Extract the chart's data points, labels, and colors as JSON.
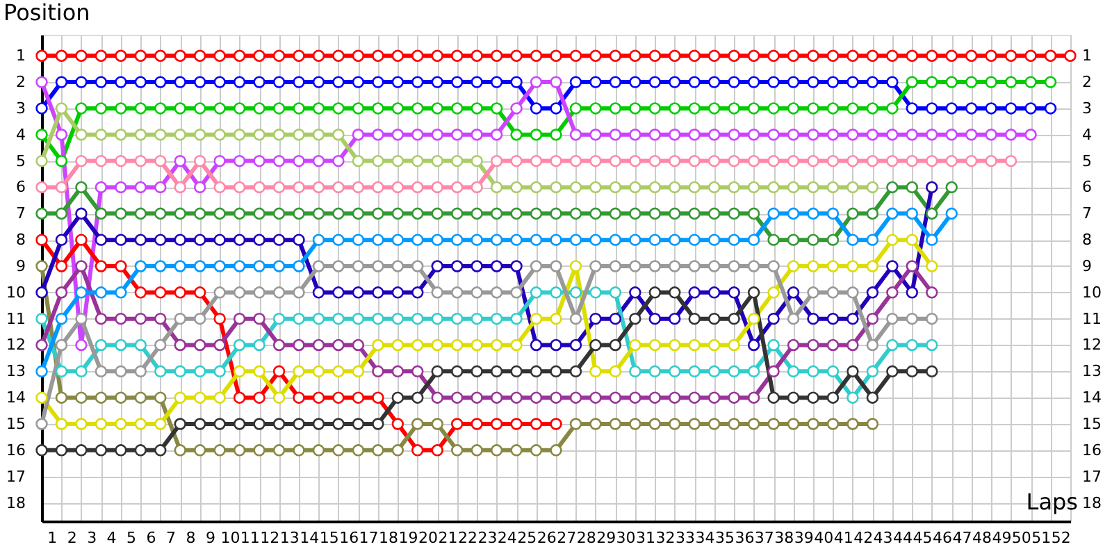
{
  "chart_data": {
    "type": "line",
    "xlabel": "Laps",
    "ylabel": "Position",
    "grid": true,
    "marker": "circle",
    "line_style": "solid",
    "legend": false,
    "x": [
      0,
      1,
      2,
      3,
      4,
      5,
      6,
      7,
      8,
      9,
      10,
      11,
      12,
      13,
      14,
      15,
      16,
      17,
      18,
      19,
      20,
      21,
      22,
      23,
      24,
      25,
      26,
      27,
      28,
      29,
      30,
      31,
      32,
      33,
      34,
      35,
      36,
      37,
      38,
      39,
      40,
      41,
      42,
      43,
      44,
      45,
      46,
      47,
      48,
      49,
      50,
      51,
      52
    ],
    "xlim": [
      0,
      52
    ],
    "xticks": [
      {
        "value": 0,
        "label": null
      },
      {
        "value": 0.5,
        "label": "1"
      },
      {
        "value": 1,
        "label": null
      },
      {
        "value": 1.5,
        "label": "2"
      },
      {
        "value": 2,
        "label": null
      },
      {
        "value": 2.5,
        "label": "3"
      },
      {
        "value": 3,
        "label": null
      },
      {
        "value": 3.5,
        "label": "4"
      },
      {
        "value": 4,
        "label": null
      },
      {
        "value": 4.5,
        "label": "5"
      },
      {
        "value": 5,
        "label": null
      },
      {
        "value": 5.5,
        "label": "6"
      },
      {
        "value": 6,
        "label": null
      },
      {
        "value": 6.5,
        "label": "7"
      },
      {
        "value": 7,
        "label": null
      },
      {
        "value": 7.5,
        "label": "8"
      },
      {
        "value": 8,
        "label": null
      },
      {
        "value": 8.5,
        "label": "9"
      },
      {
        "value": 9,
        "label": null
      },
      {
        "value": 9.5,
        "label": "10"
      },
      {
        "value": 10,
        "label": null
      },
      {
        "value": 10.5,
        "label": "11"
      },
      {
        "value": 11,
        "label": null
      },
      {
        "value": 11.5,
        "label": "12"
      },
      {
        "value": 12,
        "label": null
      },
      {
        "value": 12.5,
        "label": "13"
      },
      {
        "value": 13,
        "label": null
      },
      {
        "value": 13.5,
        "label": "14"
      },
      {
        "value": 14,
        "label": null
      },
      {
        "value": 14.5,
        "label": "15"
      },
      {
        "value": 15,
        "label": null
      },
      {
        "value": 15.5,
        "label": "16"
      },
      {
        "value": 16,
        "label": null
      },
      {
        "value": 16.5,
        "label": "17"
      },
      {
        "value": 17,
        "label": null
      },
      {
        "value": 17.5,
        "label": "18"
      },
      {
        "value": 18,
        "label": null
      },
      {
        "value": 18.5,
        "label": "19"
      },
      {
        "value": 19,
        "label": null
      },
      {
        "value": 19.5,
        "label": "20"
      },
      {
        "value": 20,
        "label": null
      },
      {
        "value": 20.5,
        "label": "21"
      },
      {
        "value": 21,
        "label": null
      },
      {
        "value": 21.5,
        "label": "22"
      },
      {
        "value": 22,
        "label": null
      },
      {
        "value": 22.5,
        "label": "23"
      },
      {
        "value": 23,
        "label": null
      },
      {
        "value": 23.5,
        "label": "24"
      },
      {
        "value": 24,
        "label": null
      },
      {
        "value": 24.5,
        "label": "25"
      },
      {
        "value": 25,
        "label": null
      },
      {
        "value": 25.5,
        "label": "26"
      },
      {
        "value": 26,
        "label": null
      },
      {
        "value": 26.5,
        "label": "27"
      },
      {
        "value": 27,
        "label": null
      },
      {
        "value": 27.5,
        "label": "28"
      },
      {
        "value": 28,
        "label": null
      },
      {
        "value": 28.5,
        "label": "29"
      },
      {
        "value": 29,
        "label": null
      },
      {
        "value": 29.5,
        "label": "30"
      },
      {
        "value": 30,
        "label": null
      },
      {
        "value": 30.5,
        "label": "31"
      },
      {
        "value": 31,
        "label": null
      },
      {
        "value": 31.5,
        "label": "32"
      },
      {
        "value": 32,
        "label": null
      },
      {
        "value": 32.5,
        "label": "33"
      },
      {
        "value": 33,
        "label": null
      },
      {
        "value": 33.5,
        "label": "34"
      },
      {
        "value": 34,
        "label": null
      },
      {
        "value": 34.5,
        "label": "35"
      },
      {
        "value": 35,
        "label": null
      },
      {
        "value": 35.5,
        "label": "36"
      },
      {
        "value": 36,
        "label": null
      },
      {
        "value": 36.5,
        "label": "37"
      },
      {
        "value": 37,
        "label": null
      },
      {
        "value": 37.5,
        "label": "38"
      },
      {
        "value": 38,
        "label": null
      },
      {
        "value": 38.5,
        "label": "39"
      },
      {
        "value": 39,
        "label": null
      },
      {
        "value": 39.5,
        "label": "40"
      },
      {
        "value": 40,
        "label": null
      },
      {
        "value": 40.5,
        "label": "41"
      },
      {
        "value": 41,
        "label": null
      },
      {
        "value": 41.5,
        "label": "42"
      },
      {
        "value": 42,
        "label": null
      },
      {
        "value": 42.5,
        "label": "43"
      },
      {
        "value": 43,
        "label": null
      },
      {
        "value": 43.5,
        "label": "44"
      },
      {
        "value": 44,
        "label": null
      },
      {
        "value": 44.5,
        "label": "45"
      },
      {
        "value": 45,
        "label": null
      },
      {
        "value": 45.5,
        "label": "46"
      },
      {
        "value": 46,
        "label": null
      },
      {
        "value": 46.5,
        "label": "47"
      },
      {
        "value": 47,
        "label": null
      },
      {
        "value": 47.5,
        "label": "48"
      },
      {
        "value": 48,
        "label": null
      },
      {
        "value": 48.5,
        "label": "49"
      },
      {
        "value": 49,
        "label": null
      },
      {
        "value": 49.5,
        "label": "50"
      },
      {
        "value": 50,
        "label": null
      },
      {
        "value": 50.5,
        "label": "51"
      },
      {
        "value": 51,
        "label": null
      },
      {
        "value": 51.5,
        "label": "52"
      },
      {
        "value": 52,
        "label": null
      }
    ],
    "ylim": [
      18.7,
      0.2
    ],
    "yticks": [
      1,
      2,
      3,
      4,
      5,
      6,
      7,
      8,
      9,
      10,
      11,
      12,
      13,
      14,
      15,
      16,
      17,
      18
    ],
    "y2lim": [
      18.7,
      0.2
    ],
    "y2ticks": [
      1,
      2,
      3,
      4,
      5,
      6,
      7,
      8,
      9,
      10,
      11,
      12,
      13,
      14,
      15,
      16,
      17,
      18
    ],
    "series": [
      {
        "color": "#ff0000",
        "values": [
          1,
          1,
          1,
          1,
          1,
          1,
          1,
          1,
          1,
          1,
          1,
          1,
          1,
          1,
          1,
          1,
          1,
          1,
          1,
          1,
          1,
          1,
          1,
          1,
          1,
          1,
          1,
          1,
          1,
          1,
          1,
          1,
          1,
          1,
          1,
          1,
          1,
          1,
          1,
          1,
          1,
          1,
          1,
          1,
          1,
          1,
          1,
          1,
          1,
          1,
          1,
          1,
          1
        ]
      },
      {
        "color": "#0000ff",
        "x": [
          0,
          1,
          2,
          3,
          4,
          5,
          6,
          7,
          8,
          9,
          10,
          11,
          12,
          13,
          14,
          15,
          16,
          17,
          18,
          19,
          20,
          21,
          22,
          23,
          24,
          25,
          26,
          27,
          28,
          29,
          30,
          31,
          32,
          33,
          34,
          35,
          36,
          37,
          38,
          39,
          40,
          41,
          42,
          43,
          44,
          45,
          46,
          47,
          48,
          49,
          50,
          51
        ],
        "values": [
          3,
          2,
          2,
          2,
          2,
          2,
          2,
          2,
          2,
          2,
          2,
          2,
          2,
          2,
          2,
          2,
          2,
          2,
          2,
          2,
          2,
          2,
          2,
          2,
          2,
          3,
          3,
          2,
          2,
          2,
          2,
          2,
          2,
          2,
          2,
          2,
          2,
          2,
          2,
          2,
          2,
          2,
          2,
          2,
          3,
          3,
          3,
          3,
          3,
          3,
          3,
          3
        ]
      },
      {
        "color": "#00cc00",
        "x": [
          0,
          1,
          2,
          3,
          4,
          5,
          6,
          7,
          8,
          9,
          10,
          11,
          12,
          13,
          14,
          15,
          16,
          17,
          18,
          19,
          20,
          21,
          22,
          23,
          24,
          25,
          26,
          27,
          28,
          29,
          30,
          31,
          32,
          33,
          34,
          35,
          36,
          37,
          38,
          39,
          40,
          41,
          42,
          43,
          44,
          45,
          46,
          47,
          48,
          49,
          50,
          51
        ],
        "values": [
          4,
          5,
          3,
          3,
          3,
          3,
          3,
          3,
          3,
          3,
          3,
          3,
          3,
          3,
          3,
          3,
          3,
          3,
          3,
          3,
          3,
          3,
          3,
          3,
          4,
          4,
          4,
          3,
          3,
          3,
          3,
          3,
          3,
          3,
          3,
          3,
          3,
          3,
          3,
          3,
          3,
          3,
          3,
          3,
          2,
          2,
          2,
          2,
          2,
          2,
          2,
          2
        ]
      },
      {
        "color": "#cc44ff",
        "x": [
          0,
          1,
          2,
          3,
          4,
          5,
          6,
          7,
          8,
          9,
          10,
          11,
          12,
          13,
          14,
          15,
          16,
          17,
          18,
          19,
          20,
          21,
          22,
          23,
          24,
          25,
          26,
          27,
          28,
          29,
          30,
          31,
          32,
          33,
          34,
          35,
          36,
          37,
          38,
          39,
          40,
          41,
          42,
          43,
          44,
          45,
          46,
          47,
          48,
          49,
          50
        ],
        "values": [
          2,
          4,
          12,
          6,
          6,
          6,
          6,
          5,
          6,
          5,
          5,
          5,
          5,
          5,
          5,
          5,
          4,
          4,
          4,
          4,
          4,
          4,
          4,
          4,
          3,
          2,
          2,
          4,
          4,
          4,
          4,
          4,
          4,
          4,
          4,
          4,
          4,
          4,
          4,
          4,
          4,
          4,
          4,
          4,
          4,
          4,
          4,
          4,
          4,
          4,
          4
        ]
      },
      {
        "color": "#aacc66",
        "x": [
          0,
          1,
          2,
          3,
          4,
          5,
          6,
          7,
          8,
          9,
          10,
          11,
          12,
          13,
          14,
          15,
          16,
          17,
          18,
          19,
          20,
          21,
          22,
          23,
          24,
          25,
          26,
          27,
          28,
          29,
          30,
          31,
          32,
          33,
          34,
          35,
          36,
          37,
          38,
          39,
          40,
          41,
          42
        ],
        "values": [
          5,
          3,
          4,
          4,
          4,
          4,
          4,
          4,
          4,
          4,
          4,
          4,
          4,
          4,
          4,
          4,
          5,
          5,
          5,
          5,
          5,
          5,
          5,
          6,
          6,
          6,
          6,
          6,
          6,
          6,
          6,
          6,
          6,
          6,
          6,
          6,
          6,
          6,
          6,
          6,
          6,
          6,
          6
        ]
      },
      {
        "color": "#ff88aa",
        "x": [
          0,
          1,
          2,
          3,
          4,
          5,
          6,
          7,
          8,
          9,
          10,
          11,
          12,
          13,
          14,
          15,
          16,
          17,
          18,
          19,
          20,
          21,
          22,
          23,
          24,
          25,
          26,
          27,
          28,
          29,
          30,
          31,
          32,
          33,
          34,
          35,
          36,
          37,
          38,
          39,
          40,
          41,
          42,
          43,
          44,
          45,
          46,
          47,
          48,
          49
        ],
        "values": [
          6,
          6,
          5,
          5,
          5,
          5,
          5,
          6,
          5,
          6,
          6,
          6,
          6,
          6,
          6,
          6,
          6,
          6,
          6,
          6,
          6,
          6,
          6,
          5,
          5,
          5,
          5,
          5,
          5,
          5,
          5,
          5,
          5,
          5,
          5,
          5,
          5,
          5,
          5,
          5,
          5,
          5,
          5,
          5,
          5,
          5,
          5,
          5,
          5,
          5
        ]
      },
      {
        "color": "#339933",
        "x": [
          0,
          1,
          2,
          3,
          4,
          5,
          6,
          7,
          8,
          9,
          10,
          11,
          12,
          13,
          14,
          15,
          16,
          17,
          18,
          19,
          20,
          21,
          22,
          23,
          24,
          25,
          26,
          27,
          28,
          29,
          30,
          31,
          32,
          33,
          34,
          35,
          36,
          37,
          38,
          39,
          40,
          41,
          42,
          43,
          44,
          45,
          46
        ],
        "values": [
          7,
          7,
          6,
          7,
          7,
          7,
          7,
          7,
          7,
          7,
          7,
          7,
          7,
          7,
          7,
          7,
          7,
          7,
          7,
          7,
          7,
          7,
          7,
          7,
          7,
          7,
          7,
          7,
          7,
          7,
          7,
          7,
          7,
          7,
          7,
          7,
          7,
          8,
          8,
          8,
          8,
          7,
          7,
          6,
          6,
          7,
          6
        ]
      },
      {
        "color": "#ff0000",
        "x": [
          0,
          1,
          2,
          3,
          4,
          5,
          6,
          7,
          8,
          9,
          10,
          11,
          12,
          13,
          14,
          15,
          16,
          17,
          18,
          19,
          20,
          21,
          22,
          23,
          24,
          25,
          26
        ],
        "values": [
          8,
          9,
          8,
          9,
          9,
          10,
          10,
          10,
          10,
          11,
          14,
          14,
          13,
          14,
          14,
          14,
          14,
          14,
          15,
          16,
          16,
          15,
          15,
          15,
          15,
          15,
          15
        ]
      },
      {
        "color": "#888844",
        "x": [
          0,
          1,
          2,
          3,
          4,
          5,
          6,
          7,
          8,
          9,
          10,
          11,
          12,
          13,
          14,
          15,
          16,
          17,
          18,
          19,
          20,
          21,
          22,
          23,
          24,
          25,
          26,
          27,
          28,
          29,
          30,
          31,
          32,
          33,
          34,
          35,
          36,
          37,
          38,
          39,
          40,
          41,
          42
        ],
        "values": [
          9,
          14,
          14,
          14,
          14,
          14,
          14,
          16,
          16,
          16,
          16,
          16,
          16,
          16,
          16,
          16,
          16,
          16,
          16,
          15,
          15,
          16,
          16,
          16,
          16,
          16,
          16,
          15,
          15,
          15,
          15,
          15,
          15,
          15,
          15,
          15,
          15,
          15,
          15,
          15,
          15,
          15,
          15
        ]
      },
      {
        "color": "#2200bb",
        "x": [
          0,
          1,
          2,
          3,
          4,
          5,
          6,
          7,
          8,
          9,
          10,
          11,
          12,
          13,
          14,
          15,
          16,
          17,
          18,
          19,
          20,
          21,
          22,
          23,
          24,
          25,
          26,
          27,
          28,
          29,
          30,
          31,
          32,
          33,
          34,
          35,
          36,
          37,
          38,
          39,
          40,
          41,
          42,
          43,
          44,
          45
        ],
        "values": [
          10,
          8,
          7,
          8,
          8,
          8,
          8,
          8,
          8,
          8,
          8,
          8,
          8,
          8,
          10,
          10,
          10,
          10,
          10,
          10,
          9,
          9,
          9,
          9,
          9,
          12,
          12,
          12,
          11,
          11,
          10,
          11,
          11,
          10,
          10,
          10,
          12,
          11,
          10,
          11,
          11,
          11,
          10,
          9,
          10,
          6
        ]
      },
      {
        "color": "#33cccc",
        "x": [
          0,
          1,
          2,
          3,
          4,
          5,
          6,
          7,
          8,
          9,
          10,
          11,
          12,
          13,
          14,
          15,
          16,
          17,
          18,
          19,
          20,
          21,
          22,
          23,
          24,
          25,
          26,
          27,
          28,
          29,
          30,
          31,
          32,
          33,
          34,
          35,
          36,
          37,
          38,
          39,
          40,
          41,
          42,
          43,
          44,
          45
        ],
        "values": [
          11,
          13,
          13,
          12,
          12,
          12,
          13,
          13,
          13,
          13,
          12,
          12,
          11,
          11,
          11,
          11,
          11,
          11,
          11,
          11,
          11,
          11,
          11,
          11,
          11,
          10,
          10,
          10,
          10,
          10,
          13,
          13,
          13,
          13,
          13,
          13,
          13,
          12,
          13,
          13,
          13,
          14,
          13,
          12,
          12,
          12
        ]
      },
      {
        "color": "#993399",
        "x": [
          0,
          1,
          2,
          3,
          4,
          5,
          6,
          7,
          8,
          9,
          10,
          11,
          12,
          13,
          14,
          15,
          16,
          17,
          18,
          19,
          20,
          21,
          22,
          23,
          24,
          25,
          26,
          27,
          28,
          29,
          30,
          31,
          32,
          33,
          34,
          35,
          36,
          37,
          38,
          39,
          40,
          41,
          42,
          43,
          44,
          45
        ],
        "values": [
          12,
          10,
          9,
          11,
          11,
          11,
          11,
          12,
          12,
          12,
          11,
          11,
          12,
          12,
          12,
          12,
          12,
          13,
          13,
          13,
          14,
          14,
          14,
          14,
          14,
          14,
          14,
          14,
          14,
          14,
          14,
          14,
          14,
          14,
          14,
          14,
          14,
          13,
          12,
          12,
          12,
          12,
          11,
          10,
          9,
          10
        ]
      },
      {
        "color": "#0099ff",
        "x": [
          0,
          1,
          2,
          3,
          4,
          5,
          6,
          7,
          8,
          9,
          10,
          11,
          12,
          13,
          14,
          15,
          16,
          17,
          18,
          19,
          20,
          21,
          22,
          23,
          24,
          25,
          26,
          27,
          28,
          29,
          30,
          31,
          32,
          33,
          34,
          35,
          36,
          37,
          38,
          39,
          40,
          41,
          42,
          43,
          44,
          45,
          46
        ],
        "values": [
          13,
          11,
          10,
          10,
          10,
          9,
          9,
          9,
          9,
          9,
          9,
          9,
          9,
          9,
          8,
          8,
          8,
          8,
          8,
          8,
          8,
          8,
          8,
          8,
          8,
          8,
          8,
          8,
          8,
          8,
          8,
          8,
          8,
          8,
          8,
          8,
          8,
          7,
          7,
          7,
          7,
          8,
          8,
          7,
          7,
          8,
          7
        ]
      },
      {
        "color": "#dddd00",
        "x": [
          0,
          1,
          2,
          3,
          4,
          5,
          6,
          7,
          8,
          9,
          10,
          11,
          12,
          13,
          14,
          15,
          16,
          17,
          18,
          19,
          20,
          21,
          22,
          23,
          24,
          25,
          26,
          27,
          28,
          29,
          30,
          31,
          32,
          33,
          34,
          35,
          36,
          37,
          38,
          39,
          40,
          41,
          42,
          43,
          44,
          45
        ],
        "values": [
          14,
          15,
          15,
          15,
          15,
          15,
          15,
          14,
          14,
          14,
          13,
          13,
          14,
          13,
          13,
          13,
          13,
          12,
          12,
          12,
          12,
          12,
          12,
          12,
          12,
          11,
          11,
          9,
          13,
          13,
          12,
          12,
          12,
          12,
          12,
          12,
          11,
          10,
          9,
          9,
          9,
          9,
          9,
          8,
          8,
          9
        ]
      },
      {
        "color": "#999999",
        "x": [
          0,
          1,
          2,
          3,
          4,
          5,
          6,
          7,
          8,
          9,
          10,
          11,
          12,
          13,
          14,
          15,
          16,
          17,
          18,
          19,
          20,
          21,
          22,
          23,
          24,
          25,
          26,
          27,
          28,
          29,
          30,
          31,
          32,
          33,
          34,
          35,
          36,
          37,
          38,
          39,
          40,
          41,
          42,
          43,
          44,
          45
        ],
        "values": [
          15,
          12,
          11,
          13,
          13,
          13,
          12,
          11,
          11,
          10,
          10,
          10,
          10,
          10,
          9,
          9,
          9,
          9,
          9,
          9,
          10,
          10,
          10,
          10,
          10,
          9,
          9,
          11,
          9,
          9,
          9,
          9,
          9,
          9,
          9,
          9,
          9,
          9,
          11,
          10,
          10,
          10,
          12,
          11,
          11,
          11
        ]
      },
      {
        "color": "#333333",
        "x": [
          0,
          1,
          2,
          3,
          4,
          5,
          6,
          7,
          8,
          9,
          10,
          11,
          12,
          13,
          14,
          15,
          16,
          17,
          18,
          19,
          20,
          21,
          22,
          23,
          24,
          25,
          26,
          27,
          28,
          29,
          30,
          31,
          32,
          33,
          34,
          35,
          36,
          37,
          38,
          39,
          40,
          41,
          42,
          43,
          44,
          45
        ],
        "values": [
          16,
          16,
          16,
          16,
          16,
          16,
          16,
          15,
          15,
          15,
          15,
          15,
          15,
          15,
          15,
          15,
          15,
          15,
          14,
          14,
          13,
          13,
          13,
          13,
          13,
          13,
          13,
          13,
          12,
          12,
          11,
          10,
          10,
          11,
          11,
          11,
          10,
          14,
          14,
          14,
          14,
          13,
          14,
          13,
          13,
          13
        ]
      }
    ]
  }
}
